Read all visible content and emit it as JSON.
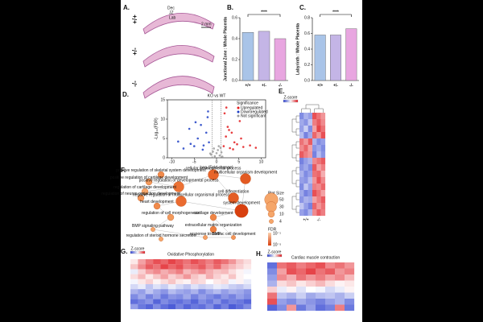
{
  "histology": {
    "label": "A.",
    "genotypes": [
      "+/+",
      "+/-",
      "-/-"
    ],
    "zones": [
      "Dec",
      "JZ",
      "Lab"
    ],
    "scale": "2 mm"
  },
  "chart_data": [
    {
      "type": "bar",
      "panel": "B.",
      "ylabel": "Junctional Zone : Whole Placenta",
      "categories": [
        "+/+",
        "+/-",
        "-/-"
      ],
      "values": [
        0.46,
        0.47,
        0.4
      ],
      "colors": [
        "#a9c4e8",
        "#c4b5e6",
        "#e8a6e0"
      ],
      "ylim": [
        0,
        0.6
      ],
      "yticks": [
        {
          "value": 0,
          "label": "0.0"
        },
        0.2,
        0.4,
        0.6
      ],
      "significance": "****"
    },
    {
      "type": "bar",
      "panel": "C.",
      "ylabel": "Labyrinth : Whole Placenta",
      "categories": [
        "+/+",
        "+/-",
        "-/-"
      ],
      "values": [
        0.58,
        0.58,
        0.66
      ],
      "colors": [
        "#a9c4e8",
        "#c4b5e6",
        "#e8a6e0"
      ],
      "ylim": [
        0,
        0.8
      ],
      "yticks": [
        {
          "value": 0,
          "label": "0.0"
        },
        0.2,
        0.4,
        0.6,
        0.8
      ],
      "significance": "****"
    },
    {
      "type": "scatter",
      "panel": "D.",
      "title": "KO vs WT",
      "xlabel": "Log₂(Fold change)",
      "ylabel": "-Log₁₀(FDR)",
      "legend_title": "Significance",
      "xlim": [
        -11,
        11
      ],
      "xticks": [
        -10,
        -5,
        0,
        5,
        10
      ],
      "ylim": [
        0,
        15
      ],
      "yticks": [
        0,
        5,
        10,
        15
      ],
      "series": [
        {
          "name": "Upregulated",
          "color": "#e31a1c",
          "x": [
            1.6,
            2.1,
            2.5,
            3.0,
            3.4,
            4.0,
            4.6,
            5.2,
            6.0,
            7.5,
            1.8,
            2.8,
            3.7,
            5.5,
            8.8,
            2.2
          ],
          "y": [
            3.0,
            5.5,
            8.0,
            2.5,
            6.5,
            4.0,
            3.5,
            9.5,
            2.8,
            3.2,
            11.5,
            7.2,
            2.2,
            5.0,
            2.6,
            13.0
          ]
        },
        {
          "name": "Downregulated",
          "color": "#1f3fc4",
          "x": [
            -1.7,
            -2.3,
            -2.9,
            -3.5,
            -4.2,
            -5.0,
            -6.1,
            -7.4,
            -8.6,
            -2.0,
            -3.1,
            -4.7,
            -5.8,
            -1.9
          ],
          "y": [
            4.0,
            6.5,
            3.2,
            8.5,
            5.0,
            3.0,
            7.5,
            2.4,
            4.2,
            10.5,
            2.1,
            9.2,
            3.6,
            12.0
          ]
        },
        {
          "name": "Not significant",
          "color": "#9a9a9a",
          "x": [
            -1.2,
            -0.8,
            -0.4,
            0,
            0.3,
            0.7,
            1.1,
            -0.6,
            0.5,
            1.3,
            -1.4,
            0.9
          ],
          "y": [
            0.8,
            1.6,
            0.4,
            1.2,
            2.0,
            0.6,
            1.4,
            2.4,
            3.0,
            0.3,
            1.1,
            2.6
          ]
        }
      ]
    },
    {
      "type": "heatmap",
      "panel": "E.",
      "legend": "Z-score",
      "groups": [
        "+/+",
        "-/-"
      ],
      "zlim": [
        -2,
        2
      ],
      "colors": [
        "#2c3fd0",
        "#ffffff",
        "#e0151c"
      ],
      "values": [
        [
          -1.2,
          -0.8,
          -1,
          1.5,
          1.2,
          0.9
        ],
        [
          -0.9,
          -1.1,
          -0.6,
          1.1,
          1.4,
          1.0
        ],
        [
          -1.0,
          -0.5,
          -1.2,
          0.8,
          1.6,
          1.2
        ],
        [
          -0.7,
          -1.3,
          -0.9,
          1.3,
          0.9,
          1.5
        ],
        [
          1.2,
          0.9,
          1.4,
          -0.8,
          -1.2,
          -1.0
        ],
        [
          1.0,
          1.3,
          0.8,
          -1.1,
          -0.9,
          -1.2
        ],
        [
          1.4,
          1.1,
          0.9,
          -1.3,
          -0.7,
          -1.1
        ],
        [
          -1.3,
          -1.0,
          -0.8,
          1.0,
          1.2,
          1.4
        ],
        [
          -1.1,
          -0.9,
          -1.2,
          1.4,
          0.8,
          1.1
        ],
        [
          -0.8,
          -1.2,
          -1.0,
          1.2,
          1.3,
          0.7
        ],
        [
          -1.0,
          -1.1,
          -0.7,
          0.9,
          1.5,
          1.0
        ],
        [
          -1.2,
          -0.6,
          -1.0,
          1.1,
          1.0,
          1.3
        ],
        [
          -0.9,
          -1.3,
          -1.1,
          1.5,
          1.2,
          0.8
        ],
        [
          -1.1,
          -0.8,
          -0.9,
          0.8,
          1.1,
          1.4
        ],
        [
          -0.6,
          -1.0,
          -1.3,
          1.3,
          0.9,
          1.2
        ],
        [
          -1.0,
          -1.2,
          -0.8,
          1.0,
          1.4,
          1.1
        ]
      ]
    },
    {
      "type": "heatmap",
      "panel": "G.",
      "title": "Oxidative Phosphorylation",
      "legend": "Z-score",
      "zlim": [
        -2,
        2
      ],
      "colors": [
        "#2c3fd0",
        "#ffffff",
        "#e0151c"
      ],
      "values": [
        [
          0.2,
          0.8,
          1.2,
          1.5,
          1.3,
          1.6,
          1.4,
          1.2,
          1.5,
          1.3,
          1.1,
          1.4,
          1.2,
          0.9,
          0.5,
          0.3
        ],
        [
          0.5,
          1.0,
          1.4,
          1.2,
          1.6,
          1.3,
          1.5,
          1.1,
          1.2,
          1.4,
          1.0,
          1.3,
          0.8,
          0.6,
          0.4,
          0.2
        ],
        [
          -0.2,
          0.4,
          0.8,
          1.0,
          0.7,
          0.9,
          1.1,
          0.6,
          0.8,
          1.0,
          0.7,
          0.5,
          0.6,
          0.3,
          0.1,
          -0.1
        ],
        [
          0.3,
          0.6,
          0.2,
          0.5,
          0.8,
          0.4,
          0.6,
          0.9,
          0.5,
          0.3,
          0.7,
          0.4,
          0.2,
          0.5,
          0.1,
          0.0
        ],
        [
          -0.1,
          0.2,
          0.4,
          0.1,
          0.3,
          0.5,
          0.2,
          0.1,
          0.4,
          0.3,
          0.0,
          0.2,
          0.3,
          -0.1,
          0.1,
          -0.2
        ],
        [
          -0.4,
          -0.2,
          -0.6,
          -0.3,
          -0.5,
          -0.2,
          -0.4,
          -0.6,
          -0.3,
          -0.5,
          -0.4,
          -0.2,
          -0.3,
          -0.5,
          -0.6,
          -0.4
        ],
        [
          -0.8,
          -1.0,
          -0.6,
          -0.9,
          -1.1,
          -0.7,
          -0.9,
          -1.0,
          -0.8,
          -1.2,
          -0.9,
          -0.7,
          -1.0,
          -0.8,
          -0.9,
          -1.1
        ],
        [
          -1.2,
          -0.9,
          -1.3,
          -1.0,
          -1.4,
          -1.1,
          -1.2,
          -0.9,
          -1.3,
          -1.0,
          -1.2,
          -1.4,
          -1.1,
          -1.3,
          -1.0,
          -1.2
        ],
        [
          -1.5,
          -1.3,
          -1.1,
          -1.6,
          -1.2,
          -1.4,
          -1.5,
          -1.3,
          -1.6,
          -1.2,
          -1.4,
          -1.1,
          -1.5,
          -1.3,
          -1.4,
          -1.6
        ],
        [
          -1.0,
          -1.4,
          -1.6,
          -1.2,
          -1.5,
          -1.7,
          -1.3,
          -1.6,
          -1.4,
          -1.5,
          -1.2,
          -1.6,
          -1.3,
          -1.7,
          -1.5,
          -1.2
        ]
      ]
    },
    {
      "type": "heatmap",
      "panel": "H.",
      "title": "Cardiac muscle contraction",
      "legend": "Z-score",
      "zlim": [
        -2,
        2
      ],
      "colors": [
        "#2c3fd0",
        "#ffffff",
        "#e0151c"
      ],
      "values": [
        [
          -1.5,
          1.2,
          1.4,
          1.1,
          1.3,
          1.5,
          1.0,
          1.2,
          0.9
        ],
        [
          -1.2,
          0.8,
          1.5,
          1.3,
          1.6,
          1.2,
          1.4,
          0.9,
          1.1
        ],
        [
          -1.0,
          1.0,
          0.7,
          1.2,
          0.9,
          1.1,
          0.8,
          1.0,
          0.6
        ],
        [
          -0.8,
          0.3,
          0.5,
          0.2,
          0.4,
          0.6,
          0.3,
          0.1,
          0.2
        ],
        [
          0.4,
          -0.2,
          0.1,
          -0.3,
          0.0,
          -0.1,
          -0.4,
          -0.2,
          0.1
        ],
        [
          1.2,
          -0.6,
          -0.8,
          -0.5,
          -0.9,
          -0.7,
          -0.6,
          -0.8,
          -0.5
        ],
        [
          1.5,
          -1.0,
          -1.2,
          -0.9,
          -1.1,
          -1.3,
          -1.0,
          -0.8,
          -1.2
        ],
        [
          -1.6,
          -1.2,
          0.9,
          -1.4,
          -1.0,
          -1.5,
          -1.3,
          1.1,
          -1.4
        ]
      ]
    }
  ],
  "network": {
    "label": "F.",
    "size_title": "Plot Size",
    "sizes": [
      50,
      30,
      10,
      4
    ],
    "fdr_title": "FDR",
    "fdr_labels": [
      "10⁻¹",
      "10⁻⁵"
    ],
    "nodes": [
      {
        "label": "positive regulation of skeletal system development",
        "size": 10,
        "color": "#f08a4b"
      },
      {
        "label": "cellular developmental process",
        "size": 30,
        "color": "#e8652a"
      },
      {
        "label": "multicellular organism development",
        "size": 30,
        "color": "#e35a22"
      },
      {
        "label": "positive regulation of cartilage development",
        "size": 10,
        "color": "#f39a5c"
      },
      {
        "label": "positive regulation of developmental process",
        "size": 30,
        "color": "#ec7235"
      },
      {
        "label": "regulation of cartilage development",
        "size": 10,
        "color": "#f5a66a"
      },
      {
        "label": "regulation of neuron projection development",
        "size": 10,
        "color": "#f29557"
      },
      {
        "label": "negative regulation of multicellular organismal process",
        "size": 30,
        "color": "#ea6b30"
      },
      {
        "label": "cell differentiation",
        "size": 30,
        "color": "#e45d24"
      },
      {
        "label": "heart development",
        "size": 10,
        "color": "#f08a4b"
      },
      {
        "label": "system development",
        "size": 50,
        "color": "#d8400f"
      },
      {
        "label": "regulation of cell morphogenesis",
        "size": 10,
        "color": "#f39a5c"
      },
      {
        "label": "cartilage development",
        "size": 10,
        "color": "#ef8545"
      },
      {
        "label": "BMP signaling pathway",
        "size": 4,
        "color": "#f5a66a"
      },
      {
        "label": "extracellular matrix organization",
        "size": 10,
        "color": "#ee7f40"
      },
      {
        "label": "response to BMP",
        "size": 4,
        "color": "#f4a063"
      },
      {
        "label": "cardiac cell development",
        "size": 4,
        "color": "#f29557"
      },
      {
        "label": "regulation of steroid hormone secretion",
        "size": 4,
        "color": "#f5a66a"
      }
    ]
  }
}
